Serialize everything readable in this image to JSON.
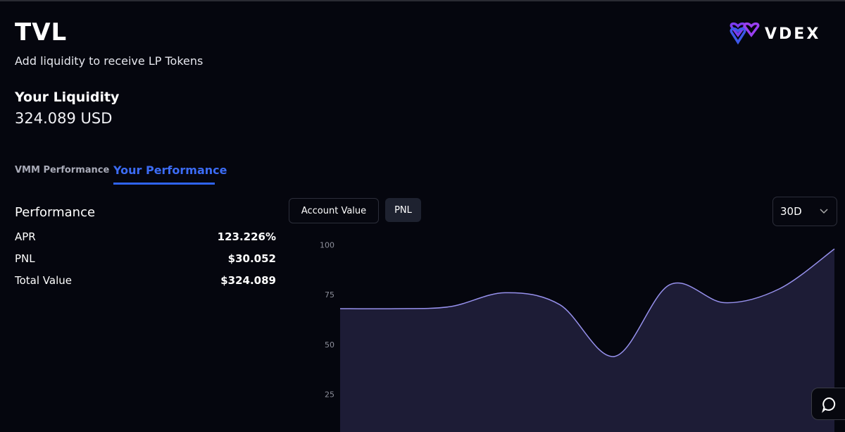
{
  "header": {
    "title": "TVL",
    "subtitle": "Add liquidity to receive LP Tokens",
    "brand": "VDEX"
  },
  "liquidity": {
    "label": "Your Liquidity",
    "value": "324.089 USD"
  },
  "tabs": [
    "VMM Performance",
    "Your Performance"
  ],
  "performance": {
    "title": "Performance",
    "rows": [
      [
        "APR",
        "123.226%"
      ],
      [
        "PNL",
        "$30.052"
      ],
      [
        "Total Value",
        "$324.089"
      ]
    ]
  },
  "controls": {
    "buttons": [
      "Account Value",
      "PNL"
    ],
    "range": "30D"
  },
  "chart_data": {
    "type": "area",
    "categories": [
      null,
      null,
      null,
      null,
      null,
      null,
      null,
      null,
      null,
      null
    ],
    "values": [
      68,
      68,
      69,
      76,
      70,
      44,
      80,
      71,
      78,
      98
    ],
    "color": "#9690ec",
    "ylim": [
      6,
      102
    ],
    "yticks": [
      25,
      50,
      75,
      100
    ]
  }
}
